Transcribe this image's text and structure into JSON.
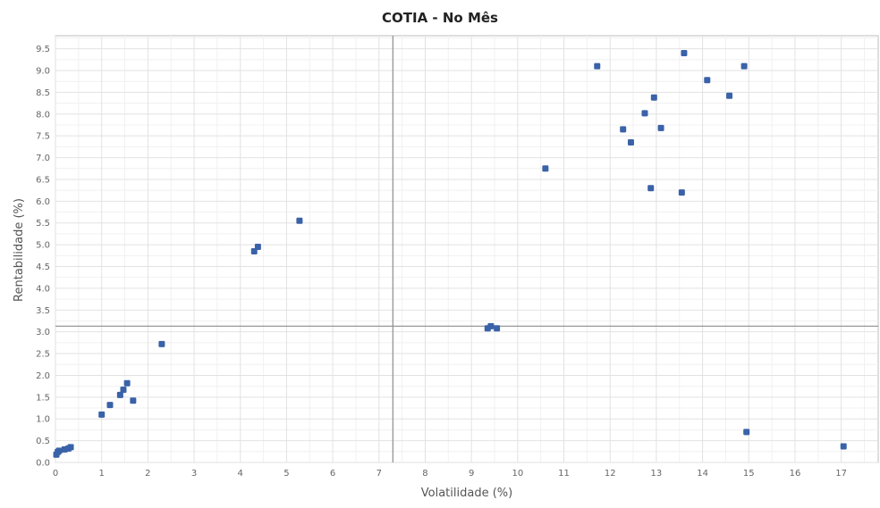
{
  "chart_data": {
    "type": "scatter",
    "title": "COTIA - No Mês",
    "xlabel": "Volatilidade (%)",
    "ylabel": "Rentabilidade (%)",
    "xlim": [
      0,
      17.8
    ],
    "ylim": [
      0,
      9.8
    ],
    "x_ticks": [
      "0",
      "1",
      "2",
      "3",
      "4",
      "5",
      "6",
      "7",
      "8",
      "9",
      "10",
      "11",
      "12",
      "13",
      "14",
      "15",
      "16",
      "17"
    ],
    "y_ticks": [
      "0.0",
      "0.5",
      "1.0",
      "1.5",
      "2.0",
      "2.5",
      "3.0",
      "3.5",
      "4.0",
      "4.5",
      "5.0",
      "5.5",
      "6.0",
      "6.5",
      "7.0",
      "7.5",
      "8.0",
      "8.5",
      "9.0",
      "9.5"
    ],
    "grid": true,
    "reference_lines": {
      "x": 7.3,
      "y": 3.13
    },
    "marker_color": "#3a62a8",
    "series": [
      {
        "points": [
          [
            0.02,
            0.18
          ],
          [
            0.05,
            0.24
          ],
          [
            0.08,
            0.27
          ],
          [
            0.2,
            0.3
          ],
          [
            0.28,
            0.32
          ],
          [
            0.33,
            0.35
          ],
          [
            1.0,
            1.1
          ],
          [
            1.18,
            1.32
          ],
          [
            1.4,
            1.55
          ],
          [
            1.47,
            1.67
          ],
          [
            1.55,
            1.82
          ],
          [
            1.68,
            1.42
          ],
          [
            2.3,
            2.72
          ],
          [
            4.3,
            4.85
          ],
          [
            4.38,
            4.95
          ],
          [
            5.28,
            5.55
          ],
          [
            9.35,
            3.08
          ],
          [
            9.42,
            3.13
          ],
          [
            9.55,
            3.08
          ],
          [
            10.6,
            6.75
          ],
          [
            11.72,
            9.1
          ],
          [
            12.28,
            7.65
          ],
          [
            12.45,
            7.35
          ],
          [
            12.75,
            8.02
          ],
          [
            12.88,
            6.3
          ],
          [
            12.95,
            8.38
          ],
          [
            13.1,
            7.68
          ],
          [
            13.55,
            6.2
          ],
          [
            13.6,
            9.4
          ],
          [
            14.1,
            8.78
          ],
          [
            14.58,
            8.42
          ],
          [
            14.9,
            9.1
          ],
          [
            14.95,
            0.7
          ],
          [
            17.05,
            0.37
          ]
        ]
      }
    ]
  }
}
